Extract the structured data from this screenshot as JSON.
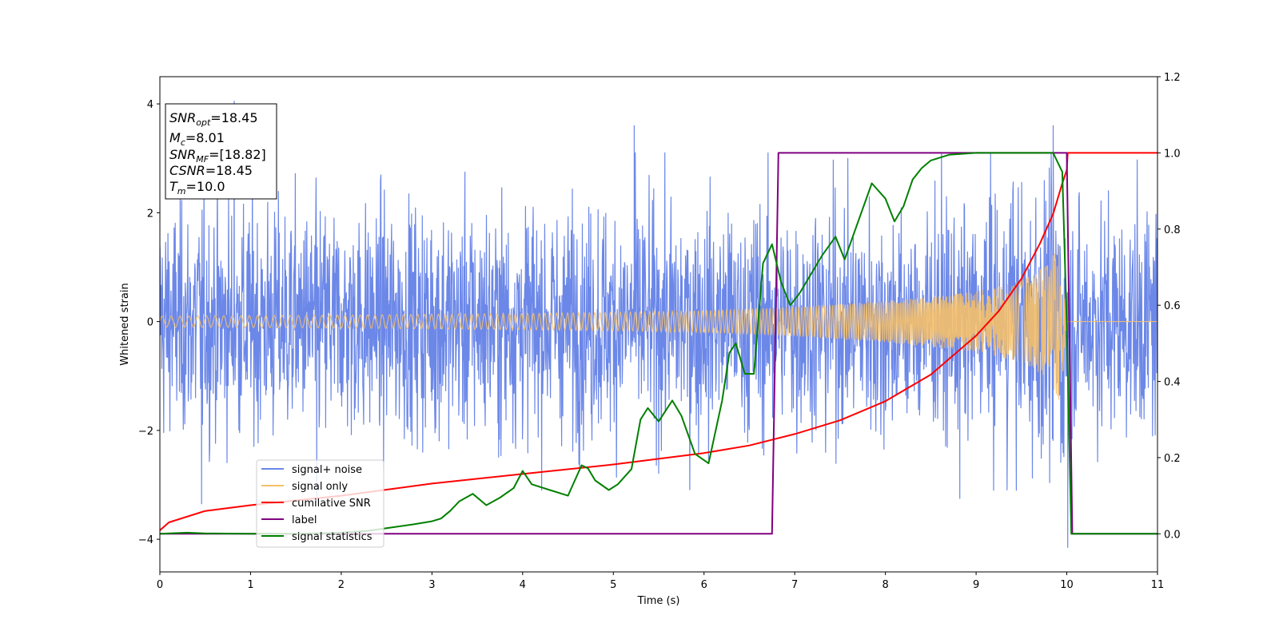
{
  "chart_data": {
    "type": "line",
    "xlabel": "Time (s)",
    "ylabel": "Whitened strain",
    "xlim": [
      0,
      11
    ],
    "ylim": [
      -4.6,
      4.5
    ],
    "y2lim": [
      -0.1,
      1.2
    ],
    "x_ticks": [
      "0",
      "1",
      "2",
      "3",
      "4",
      "5",
      "6",
      "7",
      "8",
      "9",
      "10",
      "11"
    ],
    "y_ticks": [
      "4",
      "2",
      "0",
      "−2",
      "−4"
    ],
    "y2_ticks": [
      "0.0",
      "0.2",
      "0.4",
      "0.6",
      "0.8",
      "1.0",
      "1.2"
    ],
    "info_box": {
      "snr_opt": {
        "base": "SNR",
        "sub": "opt",
        "value": "=18.45"
      },
      "mc": {
        "base": "M",
        "sub": "c",
        "value": "=8.01"
      },
      "snr_mf": {
        "base": "SNR",
        "sub": "MF",
        "value": "=[18.82]"
      },
      "csnr": {
        "base": "CSNR",
        "sub": "",
        "value": "=18.45"
      },
      "tm": {
        "base": "T",
        "sub": "m",
        "value": "=10.0"
      }
    },
    "legend_position": "lower-left",
    "legend": [
      {
        "label": "signal+ noise",
        "color": "#6b87e8"
      },
      {
        "label": "signal only",
        "color": "#f5c06a"
      },
      {
        "label": "cumilative SNR",
        "color": "#ff0000"
      },
      {
        "label": "label",
        "color": "#800080"
      },
      {
        "label": "signal statistics",
        "color": "#008000"
      }
    ],
    "series": [
      {
        "name": "signal+ noise",
        "axis": "left",
        "color": "#6b87e8",
        "style": "dense noise band",
        "x_range": [
          0,
          11
        ],
        "typical_amplitude": 1.9,
        "peak_values": [
          [
            0.82,
            4.05
          ],
          [
            5.23,
            3.6
          ],
          [
            9.85,
            3.6
          ],
          [
            10.01,
            -4.15
          ],
          [
            0.46,
            -3.35
          ],
          [
            1.73,
            -3.3
          ],
          [
            8.82,
            -3.25
          ]
        ]
      },
      {
        "name": "signal only",
        "axis": "left",
        "color": "#f5c06a",
        "style": "chirp envelope",
        "envelope": [
          [
            0,
            0.1
          ],
          [
            2,
            0.12
          ],
          [
            4,
            0.15
          ],
          [
            5,
            0.17
          ],
          [
            6,
            0.2
          ],
          [
            7,
            0.27
          ],
          [
            8,
            0.38
          ],
          [
            9,
            0.55
          ],
          [
            9.5,
            0.75
          ],
          [
            9.8,
            1.05
          ],
          [
            9.93,
            1.5
          ],
          [
            10.0,
            0.0
          ],
          [
            11,
            0.0
          ]
        ]
      },
      {
        "name": "cumilative SNR",
        "axis": "right",
        "color": "#ff0000",
        "x": [
          0,
          0.1,
          0.5,
          1,
          2,
          3,
          4,
          5,
          6,
          6.5,
          7,
          7.5,
          8,
          8.5,
          9,
          9.25,
          9.5,
          9.7,
          9.85,
          9.95,
          10.0,
          10.01,
          11
        ],
        "y": [
          0.009,
          0.03,
          0.06,
          0.075,
          0.1,
          0.132,
          0.157,
          0.182,
          0.212,
          0.232,
          0.262,
          0.298,
          0.348,
          0.418,
          0.52,
          0.585,
          0.67,
          0.76,
          0.84,
          0.92,
          0.955,
          1.0,
          1.0
        ]
      },
      {
        "name": "label",
        "axis": "right",
        "color": "#800080",
        "x": [
          0,
          6.75,
          6.82,
          10.0,
          10.06,
          11
        ],
        "y": [
          0,
          0,
          1,
          1,
          0,
          0
        ]
      },
      {
        "name": "signal statistics",
        "axis": "right",
        "color": "#008000",
        "x": [
          0,
          0.3,
          0.5,
          1,
          1.5,
          2,
          2.3,
          2.5,
          2.8,
          3.0,
          3.1,
          3.2,
          3.3,
          3.45,
          3.6,
          3.75,
          3.9,
          4.0,
          4.1,
          4.3,
          4.5,
          4.65,
          4.72,
          4.8,
          4.95,
          5.05,
          5.2,
          5.3,
          5.38,
          5.5,
          5.65,
          5.75,
          5.9,
          6.05,
          6.2,
          6.28,
          6.35,
          6.45,
          6.55,
          6.65,
          6.75,
          6.85,
          6.95,
          7.05,
          7.15,
          7.3,
          7.45,
          7.55,
          7.7,
          7.85,
          8.0,
          8.1,
          8.2,
          8.3,
          8.4,
          8.5,
          8.7,
          9.0,
          9.5,
          9.85,
          9.95,
          10.0,
          10.05,
          11
        ],
        "y": [
          0,
          0.003,
          0.001,
          0,
          0,
          0.003,
          0.008,
          0.015,
          0.025,
          0.033,
          0.04,
          0.06,
          0.085,
          0.105,
          0.075,
          0.095,
          0.12,
          0.165,
          0.13,
          0.115,
          0.1,
          0.18,
          0.172,
          0.14,
          0.115,
          0.13,
          0.17,
          0.3,
          0.33,
          0.295,
          0.35,
          0.31,
          0.21,
          0.185,
          0.35,
          0.475,
          0.5,
          0.42,
          0.42,
          0.71,
          0.76,
          0.66,
          0.6,
          0.63,
          0.67,
          0.73,
          0.78,
          0.72,
          0.82,
          0.92,
          0.88,
          0.82,
          0.86,
          0.93,
          0.96,
          0.98,
          0.995,
          1.0,
          1.0,
          1.0,
          0.95,
          0.55,
          0.0,
          0.0
        ]
      }
    ]
  }
}
